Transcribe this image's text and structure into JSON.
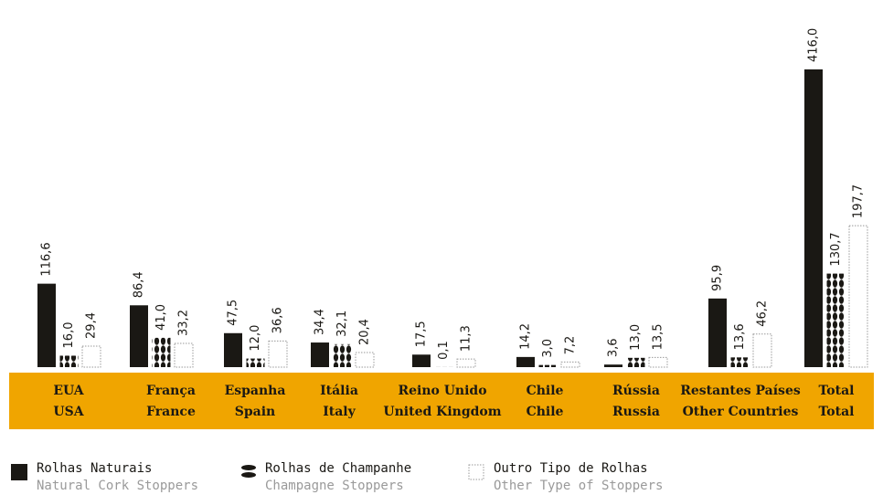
{
  "chart_data": {
    "type": "bar",
    "categories": [
      [
        "EUA",
        "USA"
      ],
      [
        "França",
        "France"
      ],
      [
        "Espanha",
        "Spain"
      ],
      [
        "Itália",
        "Italy"
      ],
      [
        "Reino Unido",
        "United Kingdom"
      ],
      [
        "Chile",
        "Chile"
      ],
      [
        "Rússia",
        "Russia"
      ],
      [
        "Restantes Países",
        "Other Countries"
      ],
      [
        "Total",
        "Total"
      ]
    ],
    "series": [
      {
        "name": "Rolhas Naturais",
        "name_en": "Natural Cork Stoppers",
        "color": "#1a1814",
        "style": "solid",
        "values": [
          116.6,
          86.4,
          47.5,
          34.4,
          17.5,
          14.2,
          3.6,
          95.9,
          416.0
        ],
        "value_labels": [
          "116,6",
          "86,4",
          "47,5",
          "34,4",
          "17,5",
          "14,2",
          "3,6",
          "95,9",
          "416,0"
        ]
      },
      {
        "name": "Rolhas de Champanhe",
        "name_en": "Champagne Stoppers",
        "color": "#1a1814",
        "style": "beans",
        "values": [
          16.0,
          41.0,
          12.0,
          32.1,
          0.1,
          3.0,
          13.0,
          13.6,
          130.7
        ],
        "value_labels": [
          "16,0",
          "41,0",
          "12,0",
          "32,1",
          "0,1",
          "3,0",
          "13,0",
          "13,6",
          "130,7"
        ]
      },
      {
        "name": "Outro Tipo de Rolhas",
        "name_en": "Other Type of Stoppers",
        "color": "#999999",
        "style": "dotted",
        "values": [
          29.4,
          33.2,
          36.6,
          20.4,
          11.3,
          7.2,
          13.5,
          46.2,
          197.7
        ],
        "value_labels": [
          "29,4",
          "33,2",
          "36,6",
          "20,4",
          "11,3",
          "7,2",
          "13,5",
          "46,2",
          "197,7"
        ]
      }
    ],
    "band_color": "#f0a500"
  }
}
